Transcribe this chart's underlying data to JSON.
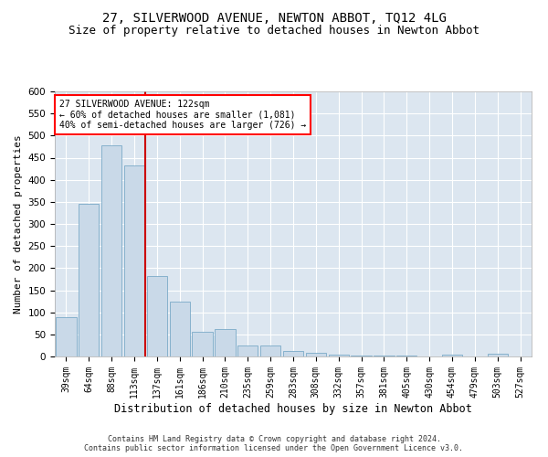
{
  "title": "27, SILVERWOOD AVENUE, NEWTON ABBOT, TQ12 4LG",
  "subtitle": "Size of property relative to detached houses in Newton Abbot",
  "xlabel": "Distribution of detached houses by size in Newton Abbot",
  "ylabel": "Number of detached properties",
  "categories": [
    "39sqm",
    "64sqm",
    "88sqm",
    "113sqm",
    "137sqm",
    "161sqm",
    "186sqm",
    "210sqm",
    "235sqm",
    "259sqm",
    "283sqm",
    "308sqm",
    "332sqm",
    "357sqm",
    "381sqm",
    "405sqm",
    "430sqm",
    "454sqm",
    "479sqm",
    "503sqm",
    "527sqm"
  ],
  "values": [
    88,
    345,
    477,
    432,
    182,
    125,
    56,
    63,
    25,
    24,
    12,
    8,
    4,
    3,
    3,
    2,
    0,
    5,
    0,
    6,
    0
  ],
  "bar_color": "#c9d9e8",
  "bar_edge_color": "#7aaac8",
  "red_line_x": 3.5,
  "annotation_text": "27 SILVERWOOD AVENUE: 122sqm\n← 60% of detached houses are smaller (1,081)\n40% of semi-detached houses are larger (726) →",
  "annotation_box_color": "white",
  "annotation_box_edge_color": "red",
  "red_line_color": "#cc0000",
  "ylim": [
    0,
    600
  ],
  "yticks": [
    0,
    50,
    100,
    150,
    200,
    250,
    300,
    350,
    400,
    450,
    500,
    550,
    600
  ],
  "footer_line1": "Contains HM Land Registry data © Crown copyright and database right 2024.",
  "footer_line2": "Contains public sector information licensed under the Open Government Licence v3.0.",
  "plot_bg_color": "#dce6f0",
  "title_fontsize": 10,
  "subtitle_fontsize": 9,
  "xlabel_fontsize": 8.5,
  "ylabel_fontsize": 8,
  "tick_fontsize": 7,
  "ytick_fontsize": 7.5,
  "annotation_fontsize": 7,
  "footer_fontsize": 6
}
